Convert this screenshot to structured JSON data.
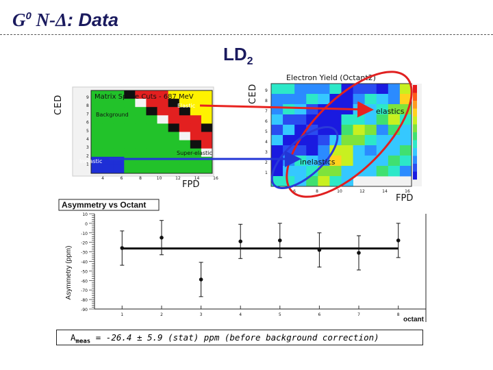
{
  "slide": {
    "title_g": "G",
    "title_sup": "0",
    "title_ndelta": " N-Δ",
    "title_rest": ": Data",
    "target_main": "LD",
    "target_sub": "2"
  },
  "left_plot": {
    "title": "Matrix Space Cuts - 687 MeV",
    "region_labels": [
      "Background",
      "Elastic",
      "Super-elastic",
      "Inelastic"
    ],
    "x_ticks": [
      "4",
      "6",
      "8",
      "10",
      "12",
      "14",
      "16"
    ],
    "y_ticks": [
      "9",
      "8",
      "7",
      "6",
      "5",
      "4",
      "3",
      "2",
      "1"
    ],
    "ylabel": "CED",
    "xlabel": "FPD"
  },
  "right_plot": {
    "title": "Electron Yield (Octant2)",
    "ylabel": "CED",
    "xlabel": "FPD",
    "x_ticks": [
      "6",
      "8",
      "10",
      "12",
      "14",
      "16"
    ],
    "y_ticks": [
      "9",
      "8",
      "7",
      "6",
      "5",
      "4",
      "3",
      "2",
      "1"
    ],
    "elastics_label": "elastics",
    "inelastics_label": "inelastics",
    "arrow_red_color": "#e8231f",
    "arrow_blue_color": "#2236d6"
  },
  "asym_plot": {
    "title": "Asymmetry vs Octant",
    "ylabel": "Asymmetry (ppm)",
    "xlabel": "octant",
    "y_ticks": [
      "10",
      "0",
      "-10",
      "-20",
      "-30",
      "-40",
      "-50",
      "-60",
      "-70",
      "-80",
      "-90"
    ],
    "x_ticks": [
      "1",
      "2",
      "3",
      "4",
      "5",
      "6",
      "7",
      "8"
    ]
  },
  "chart_data": {
    "type": "scatter",
    "title": "Asymmetry vs Octant",
    "xlabel": "octant",
    "ylabel": "Asymmetry (ppm)",
    "x": [
      1,
      2,
      3,
      4,
      5,
      6,
      7,
      8
    ],
    "y": [
      -26,
      -15,
      -59,
      -19,
      -18,
      -28,
      -31,
      -18
    ],
    "yerr": [
      18,
      18,
      18,
      18,
      18,
      18,
      18,
      18
    ],
    "fit_value": -26.4,
    "xlim": [
      0.3,
      8.7
    ],
    "ylim": [
      -90,
      10
    ],
    "grid": false
  },
  "formula": {
    "a": "A",
    "a_sub": "meas",
    "rest": " = -26.4 ± 5.9 (stat) ppm  (before background correction)"
  }
}
